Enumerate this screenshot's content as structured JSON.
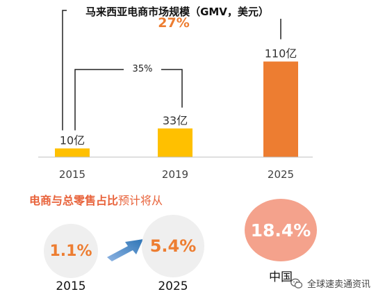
{
  "chart_data": {
    "type": "bar",
    "title": "马来西亚电商市场规模（GMV，美元）",
    "categories": [
      "2015",
      "2019",
      "2025"
    ],
    "values": [
      10,
      33,
      110
    ],
    "value_labels": [
      "10亿",
      "33亿",
      "110亿"
    ],
    "bar_colors": [
      "#FFC000",
      "#FFC000",
      "#ED7D31"
    ],
    "growth_labels": {
      "2015_2019": "35%",
      "2015_2025": "27%"
    },
    "ylim": [
      0,
      120
    ],
    "grid": false
  },
  "share": {
    "title_highlight": "电商与总零售占比",
    "title_rest": "预计将从",
    "items": [
      {
        "value": "1.1%",
        "label": "2015"
      },
      {
        "value": "5.4%",
        "label": "2025"
      },
      {
        "value": "18.4%",
        "label": "中国"
      }
    ]
  },
  "watermark": {
    "text": "全球速卖通资讯",
    "icon": "wechat-icon"
  }
}
